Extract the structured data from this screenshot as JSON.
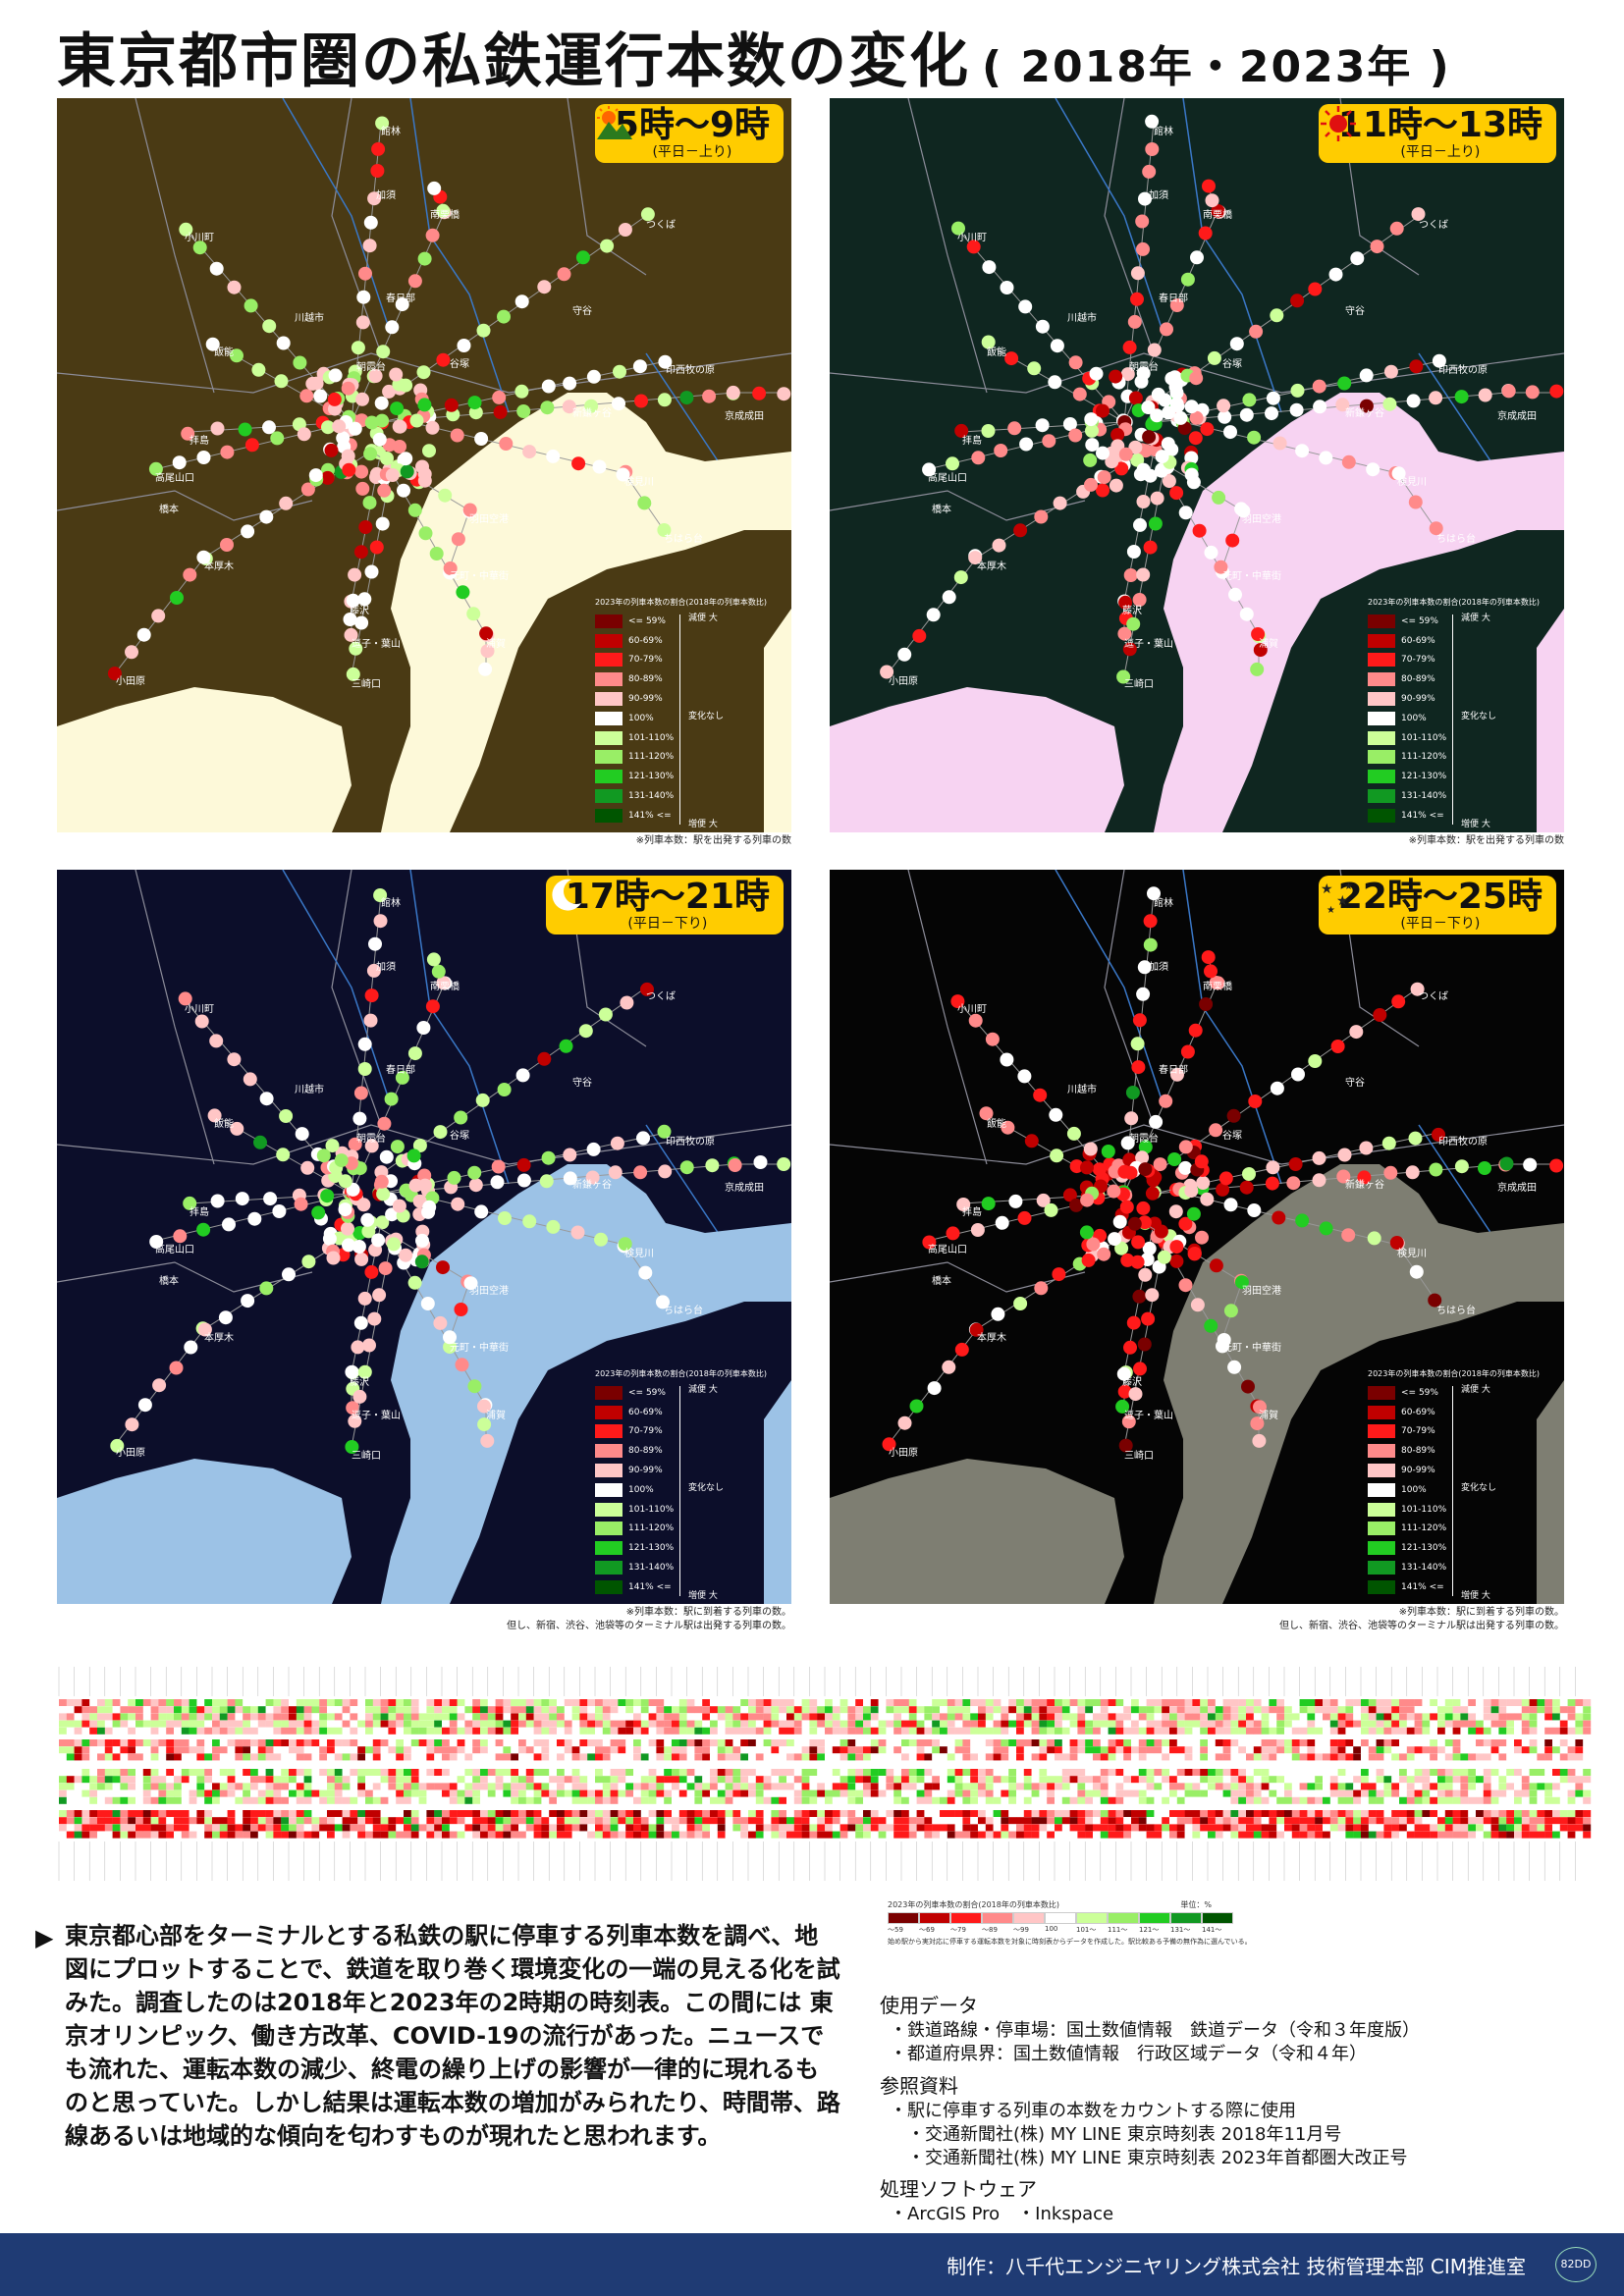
{
  "title": {
    "main": "東京都市圏の私鉄運行本数の変化",
    "sub": "( 2018年・2023年 )"
  },
  "maps": [
    {
      "period": "5時～9時",
      "sub": "(平日－上り)",
      "icon": "sunrise-icon",
      "bg": "#4a3a14",
      "sea": "#fdf9d9",
      "note": [
        "※列車本数：駅を出発する列車の数"
      ]
    },
    {
      "period": "11時～13時",
      "sub": "(平日－上り)",
      "icon": "sun-icon",
      "bg": "#0f2620",
      "sea": "#f7d3f2",
      "note": [
        "※列車本数：駅を出発する列車の数"
      ]
    },
    {
      "period": "17時～21時",
      "sub": "(平日－下り)",
      "icon": "moon-icon",
      "bg": "#0c0e2a",
      "sea": "#9cc2e6",
      "note": [
        "※列車本数：駅に到着する列車の数。",
        "但し、新宿、渋谷、池袋等のターミナル駅は出発する列車の数。"
      ]
    },
    {
      "period": "22時～25時",
      "sub": "(平日－下り)",
      "icon": "stars-icon",
      "bg": "#050505",
      "sea": "#7e7e72",
      "note": [
        "※列車本数：駅に到着する列車の数。",
        "但し、新宿、渋谷、池袋等のターミナル駅は出発する列車の数。"
      ]
    }
  ],
  "places": [
    "館林",
    "加須",
    "南栗橋",
    "つくば",
    "小川町",
    "春日部",
    "守谷",
    "川越市",
    "飯能",
    "朝霞台",
    "谷塚",
    "印西牧の原",
    "新鎌ヶ谷",
    "京成成田",
    "拝島",
    "高尾山口",
    "検見川",
    "橋本",
    "羽田空港",
    "ちはら台",
    "本厚木",
    "元町・中華街",
    "藤沢",
    "逗子・葉山",
    "浦賀",
    "三崎口",
    "小田原"
  ],
  "legend": {
    "title": "2023年の列車本数の割合(2018年の列車本数比)",
    "items": [
      {
        "label": "<= 59%",
        "color": "#7a0000"
      },
      {
        "label": "60-69%",
        "color": "#c00000"
      },
      {
        "label": "70-79%",
        "color": "#ff1a1a"
      },
      {
        "label": "80-89%",
        "color": "#ff8a8a"
      },
      {
        "label": "90-99%",
        "color": "#ffc6c6"
      },
      {
        "label": "100%",
        "color": "#ffffff"
      },
      {
        "label": "101-110%",
        "color": "#ccff99"
      },
      {
        "label": "111-120%",
        "color": "#99ee66"
      },
      {
        "label": "121-130%",
        "color": "#22cc22"
      },
      {
        "label": "131-140%",
        "color": "#119922"
      },
      {
        "label": "141% <=",
        "color": "#005500"
      }
    ],
    "top": "減便 大",
    "mid": "変化なし",
    "bottom": "増便 大"
  },
  "matrix_legend": {
    "title": "2023年の列車本数の割合(2018年の列車本数比)",
    "unit": "単位：%",
    "labels": [
      "～59",
      "～69",
      "～79",
      "～89",
      "～99",
      "100",
      "101～",
      "111～",
      "121～",
      "131～",
      "141～"
    ],
    "note": "始め駅から実対応に停車する運転本数を対象に時刻表からデータを作成した。駅比較ある予備の無作為に選んでいる。"
  },
  "description": "東京都心部をターミナルとする私鉄の駅に停車する列車本数を調べ、地図にプロットすることで、鉄道を取り巻く環境変化の一端の見える化を試みた。調査したのは2018年と2023年の2時期の時刻表。この間には 東京オリンピック、働き方改革、COVID-19の流行があった。ニュースでも流れた、運転本数の減少、終電の繰り上げの影響が一律的に現れるものと思っていた。しかし結果は運転本数の増加がみられたり、時間帯、路線あるいは地域的な傾向を匂わすものが現れたと思われます。",
  "refs": {
    "h1": "使用データ",
    "d1": "・鉄道路線・停車場：国土数値情報　鉄道データ（令和３年度版）",
    "d2": "・都道府県界：国土数値情報　行政区域データ（令和４年）",
    "h2": "参照資料",
    "r1": "・駅に停車する列車の本数をカウントする際に使用",
    "r2": "・交通新聞社(株) MY LINE 東京時刻表 2018年11月号",
    "r3": "・交通新聞社(株) MY LINE 東京時刻表 2023年首都圏大改正号",
    "h3": "処理ソフトウェア",
    "s1": "・ArcGIS Pro　・Inkspace"
  },
  "footer": {
    "credit": "制作：八千代エンジニヤリング株式会社 技術管理本部 CIM推進室",
    "logo": "82DD"
  }
}
